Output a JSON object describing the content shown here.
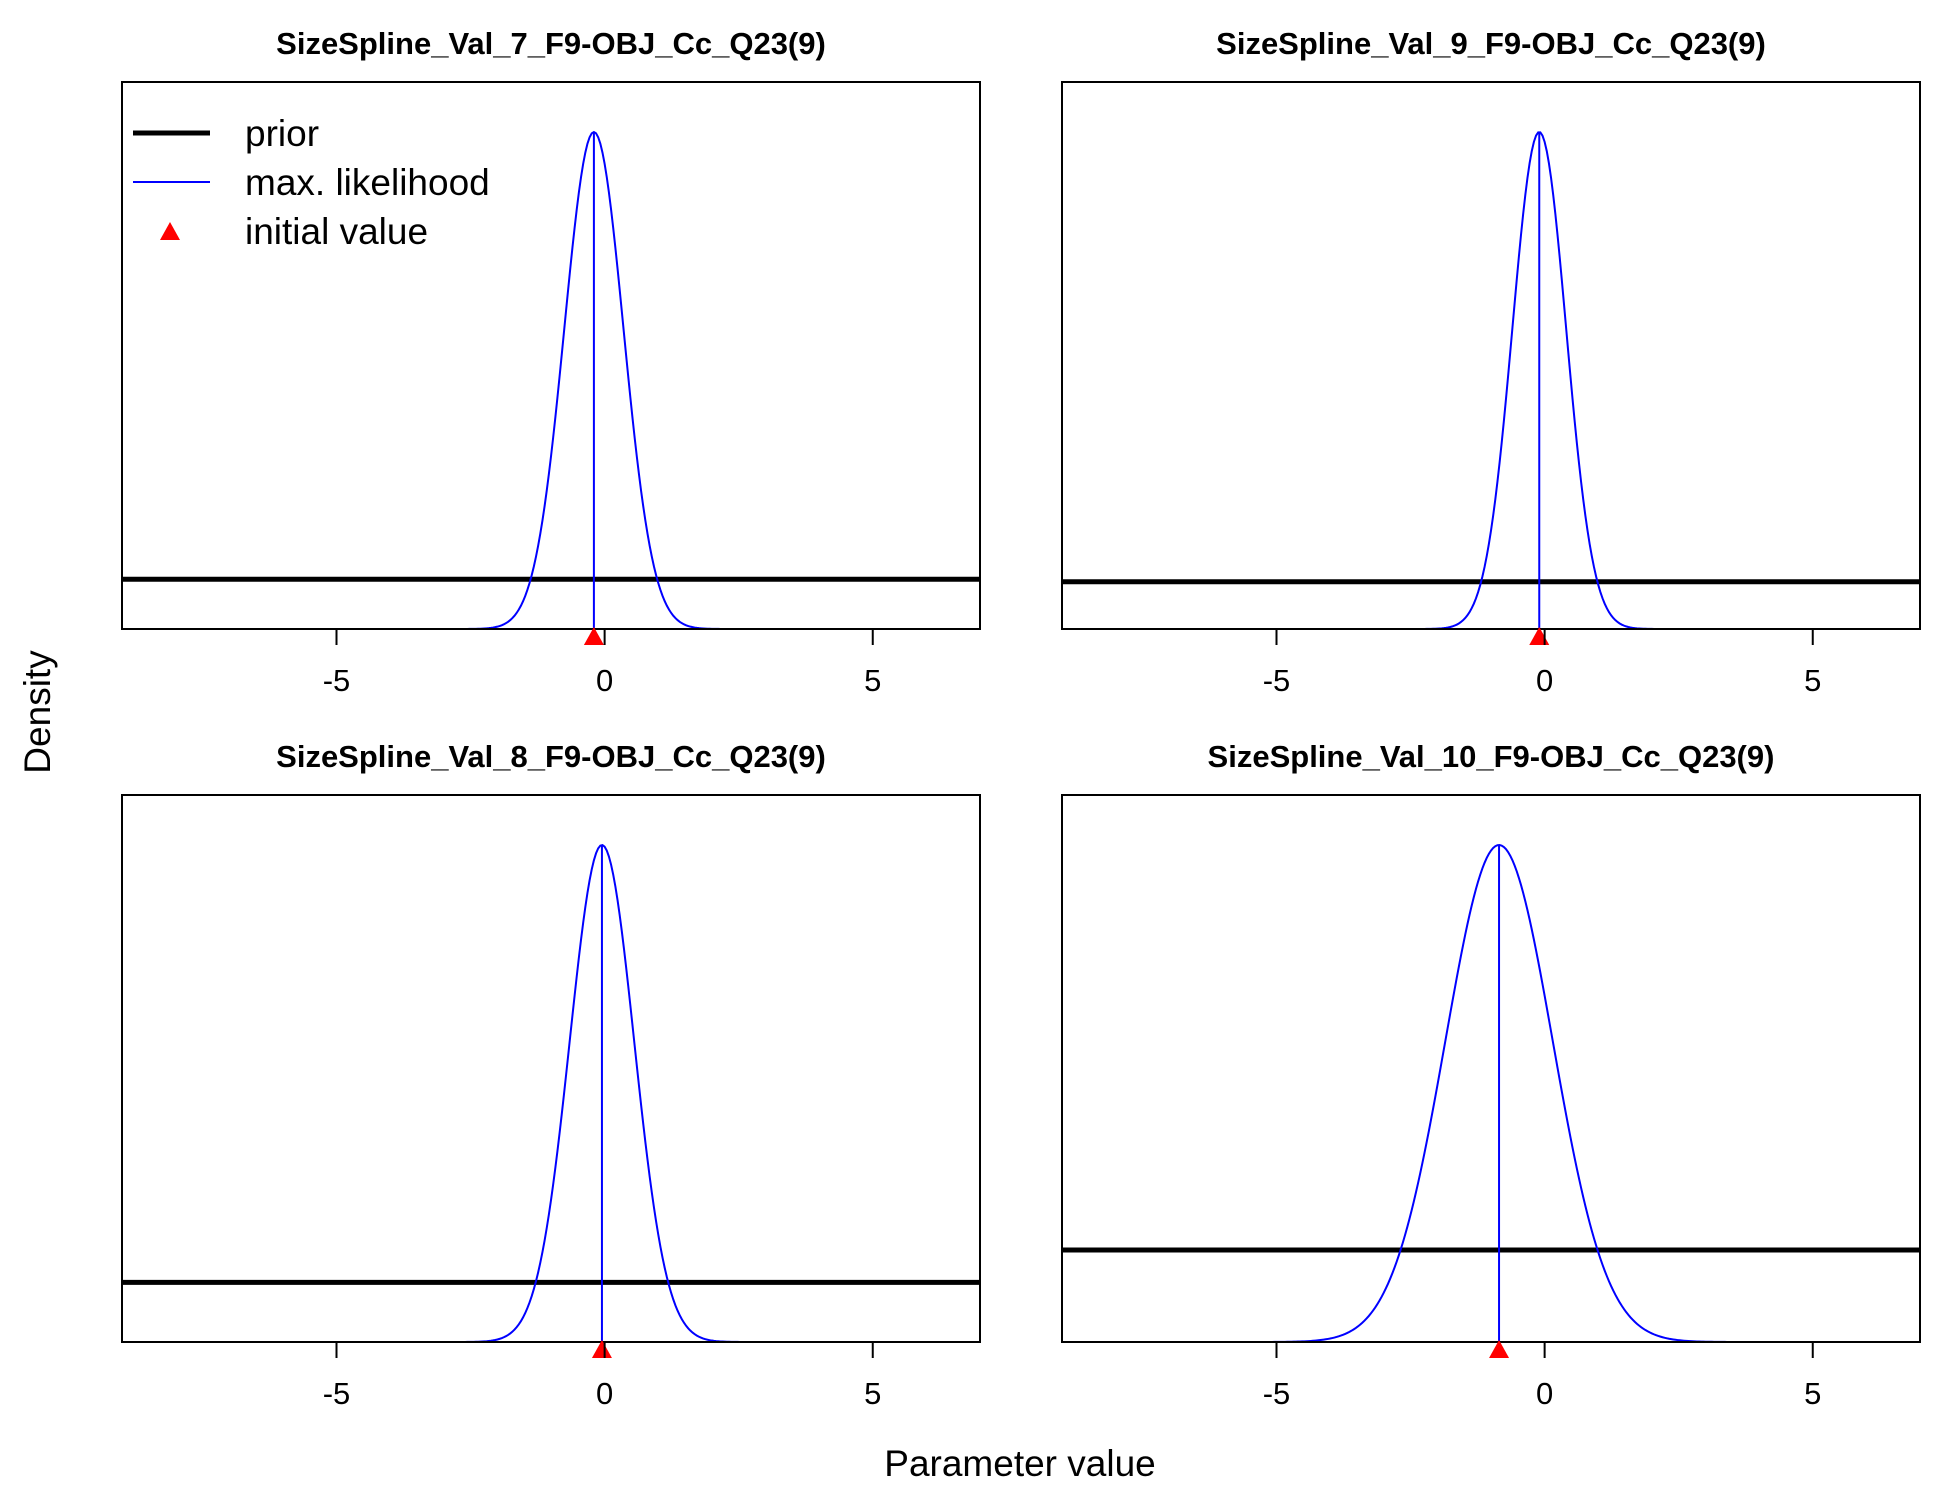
{
  "axes": {
    "xlabel": "Parameter value",
    "ylabel": "Density"
  },
  "colors": {
    "prior": "#000000",
    "max_likelihood": "#0000ff",
    "initial_value": "#ff0000",
    "frame": "#000000"
  },
  "legend": {
    "placement": "top-left",
    "items": [
      {
        "label": "prior",
        "style": "thick-line",
        "color": "#000000"
      },
      {
        "label": "max. likelihood",
        "style": "thin-line",
        "color": "#0000ff"
      },
      {
        "label": "initial value",
        "style": "triangle",
        "color": "#ff0000"
      }
    ]
  },
  "chart_data": [
    {
      "type": "line",
      "title": "SizeSpline_Val_7_F9-OBJ_Cc_Q23(9)",
      "xlim": [
        -9,
        7
      ],
      "xticks": [
        -5,
        0,
        5
      ],
      "xtick_labels": [
        "-5",
        "0",
        "5"
      ],
      "ymax_relative": 1.0,
      "mle": -0.2,
      "sd": 0.55,
      "prior_level": 0.1,
      "initial_value": -0.2,
      "show_legend": true
    },
    {
      "type": "line",
      "title": "SizeSpline_Val_9_F9-OBJ_Cc_Q23(9)",
      "xlim": [
        -9,
        7
      ],
      "xticks": [
        -5,
        0,
        5
      ],
      "xtick_labels": [
        "-5",
        "0",
        "5"
      ],
      "ymax_relative": 1.0,
      "mle": -0.1,
      "sd": 0.5,
      "prior_level": 0.095,
      "initial_value": -0.1,
      "show_legend": false
    },
    {
      "type": "line",
      "title": "SizeSpline_Val_8_F9-OBJ_Cc_Q23(9)",
      "xlim": [
        -9,
        7
      ],
      "xticks": [
        -5,
        0,
        5
      ],
      "xtick_labels": [
        "-5",
        "0",
        "5"
      ],
      "ymax_relative": 1.0,
      "mle": -0.05,
      "sd": 0.6,
      "prior_level": 0.12,
      "initial_value": -0.05,
      "show_legend": false
    },
    {
      "type": "line",
      "title": "SizeSpline_Val_10_F9-OBJ_Cc_Q23(9)",
      "xlim": [
        -9,
        7
      ],
      "xticks": [
        -5,
        0,
        5
      ],
      "xtick_labels": [
        "-5",
        "0",
        "5"
      ],
      "ymax_relative": 1.0,
      "mle": -0.85,
      "sd": 1.0,
      "prior_level": 0.185,
      "initial_value": -0.85,
      "show_legend": false
    }
  ]
}
